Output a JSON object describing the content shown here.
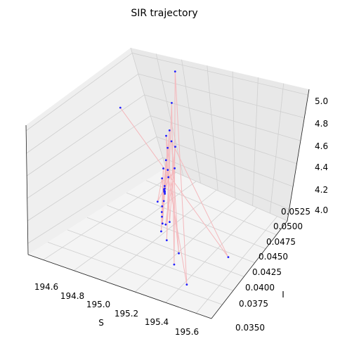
{
  "chart_data": {
    "type": "scatter",
    "title": "SIR trajectory",
    "xlabel": "S",
    "ylabel": "I",
    "zlabel": "",
    "xlim": [
      194.5,
      195.7
    ],
    "ylim": [
      0.035,
      0.0525
    ],
    "zlim": [
      3.9,
      5.05
    ],
    "xticks": [
      "194.6",
      "194.8",
      "195.0",
      "195.2",
      "195.4",
      "195.6"
    ],
    "yticks": [
      "0.0350",
      "0.0375",
      "0.0400",
      "0.0425",
      "0.0450",
      "0.0475",
      "0.0500",
      "0.0525"
    ],
    "zticks": [
      "4.0",
      "4.2",
      "4.4",
      "4.6",
      "4.8",
      "5.0"
    ],
    "grid": true,
    "series": [
      {
        "color": "#2020ff",
        "line_color": "#f4b8bc",
        "points": [
          [
            194.64,
            0.0445,
            4.92
          ],
          [
            195.58,
            0.0425,
            4.03
          ],
          [
            194.72,
            0.0502,
            4.36
          ],
          [
            195.46,
            0.0358,
            4.36
          ],
          [
            194.86,
            0.0472,
            4.62
          ],
          [
            195.3,
            0.0385,
            4.44
          ],
          [
            194.96,
            0.0468,
            4.58
          ],
          [
            195.22,
            0.0398,
            4.31
          ],
          [
            195.04,
            0.0452,
            4.49
          ],
          [
            195.1,
            0.0412,
            4.4
          ],
          [
            195.01,
            0.0438,
            4.45
          ],
          [
            195.11,
            0.042,
            4.37
          ],
          [
            195.06,
            0.0432,
            4.43
          ],
          [
            195.09,
            0.0426,
            4.4
          ],
          [
            195.07,
            0.043,
            4.42
          ],
          [
            195.08,
            0.0428,
            4.41
          ],
          [
            195.07,
            0.0429,
            4.41
          ],
          [
            195.08,
            0.0427,
            4.41
          ],
          [
            195.07,
            0.0429,
            4.42
          ],
          [
            195.08,
            0.0428,
            4.4
          ],
          [
            195.02,
            0.0445,
            4.5
          ],
          [
            195.14,
            0.041,
            4.33
          ],
          [
            194.98,
            0.045,
            4.55
          ],
          [
            195.18,
            0.0402,
            4.28
          ],
          [
            194.9,
            0.047,
            4.7
          ],
          [
            195.26,
            0.039,
            4.22
          ],
          [
            194.8,
            0.049,
            4.82
          ],
          [
            195.38,
            0.0372,
            4.14
          ],
          [
            194.7,
            0.051,
            4.98
          ],
          [
            195.5,
            0.0362,
            4.06
          ],
          [
            195.05,
            0.044,
            4.47
          ],
          [
            195.12,
            0.0415,
            4.35
          ],
          [
            194.94,
            0.046,
            4.6
          ],
          [
            195.2,
            0.0395,
            4.25
          ],
          [
            195.0,
            0.0442,
            4.52
          ],
          [
            195.15,
            0.0408,
            4.3
          ]
        ]
      }
    ]
  }
}
